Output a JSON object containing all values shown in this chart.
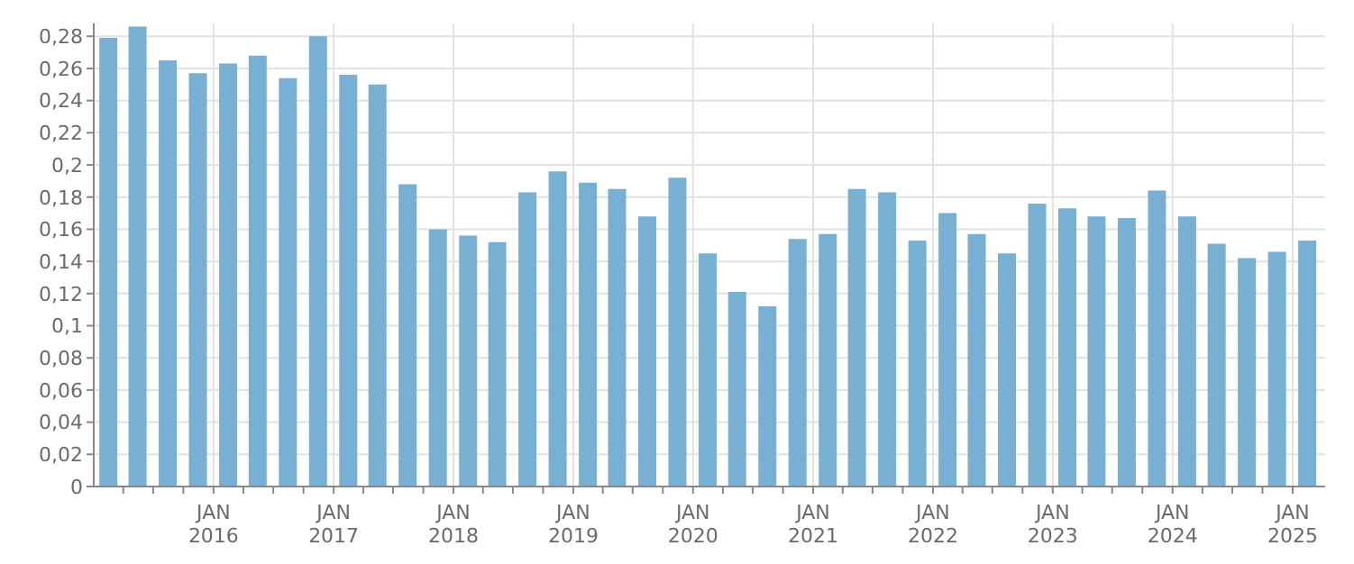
{
  "chart_data": {
    "type": "bar",
    "x": [
      "2015-02-15",
      "2015-05-15",
      "2015-08-15",
      "2015-11-15",
      "2016-02-15",
      "2016-05-15",
      "2016-08-15",
      "2016-11-15",
      "2017-02-15",
      "2017-05-15",
      "2017-08-15",
      "2017-11-15",
      "2018-02-15",
      "2018-05-15",
      "2018-08-15",
      "2018-11-15",
      "2019-02-15",
      "2019-05-15",
      "2019-08-15",
      "2019-11-15",
      "2020-02-15",
      "2020-05-15",
      "2020-08-15",
      "2020-11-15",
      "2021-02-15",
      "2021-05-15",
      "2021-08-15",
      "2021-11-15",
      "2022-02-15",
      "2022-05-15",
      "2022-08-15",
      "2022-11-15",
      "2023-02-15",
      "2023-05-15",
      "2023-08-15",
      "2023-11-15",
      "2024-02-15",
      "2024-05-15",
      "2024-08-15",
      "2024-11-15",
      "2025-02-15"
    ],
    "values": [
      0.279,
      0.286,
      0.265,
      0.257,
      0.263,
      0.268,
      0.254,
      0.28,
      0.256,
      0.25,
      0.188,
      0.16,
      0.156,
      0.152,
      0.183,
      0.196,
      0.189,
      0.185,
      0.168,
      0.192,
      0.145,
      0.121,
      0.112,
      0.154,
      0.157,
      0.185,
      0.183,
      0.153,
      0.17,
      0.157,
      0.145,
      0.176,
      0.173,
      0.168,
      0.167,
      0.184,
      0.168,
      0.151,
      0.142,
      0.146,
      0.153
    ],
    "color": "#77b0d2",
    "ylim": [
      0,
      0.288
    ],
    "yticks": [
      0,
      {
        "value": 0.02,
        "label": "0,02"
      },
      {
        "value": 0.04,
        "label": "0,04"
      },
      {
        "value": 0.06,
        "label": "0,06"
      },
      {
        "value": 0.08,
        "label": "0,08"
      },
      {
        "value": 0.1,
        "label": "0,1"
      },
      {
        "value": 0.12,
        "label": "0,12"
      },
      {
        "value": 0.14,
        "label": "0,14"
      },
      {
        "value": 0.16,
        "label": "0,16"
      },
      {
        "value": 0.18,
        "label": "0,18"
      },
      {
        "value": 0.2,
        "label": "0,2"
      },
      {
        "value": 0.22,
        "label": "0,22"
      },
      {
        "value": 0.24,
        "label": "0,24"
      },
      {
        "value": 0.26,
        "label": "0,26"
      },
      {
        "value": 0.28,
        "label": "0,28"
      }
    ],
    "xlim": [
      "2015-01-01",
      "2025-04-10"
    ],
    "xticks": [
      {
        "value": "2015-04-01",
        "label": null
      },
      {
        "value": "2015-07-01",
        "label": null
      },
      {
        "value": "2015-10-01",
        "label": null
      },
      {
        "value": "2016-01-01",
        "label": "JAN 2016"
      },
      {
        "value": "2016-04-01",
        "label": null
      },
      {
        "value": "2016-07-01",
        "label": null
      },
      {
        "value": "2016-10-01",
        "label": null
      },
      {
        "value": "2017-01-01",
        "label": "JAN 2017"
      },
      {
        "value": "2017-04-01",
        "label": null
      },
      {
        "value": "2017-07-01",
        "label": null
      },
      {
        "value": "2017-10-01",
        "label": null
      },
      {
        "value": "2018-01-01",
        "label": "JAN 2018"
      },
      {
        "value": "2018-04-01",
        "label": null
      },
      {
        "value": "2018-07-01",
        "label": null
      },
      {
        "value": "2018-10-01",
        "label": null
      },
      {
        "value": "2019-01-01",
        "label": "JAN 2019"
      },
      {
        "value": "2019-04-01",
        "label": null
      },
      {
        "value": "2019-07-01",
        "label": null
      },
      {
        "value": "2019-10-01",
        "label": null
      },
      {
        "value": "2020-01-01",
        "label": "JAN 2020"
      },
      {
        "value": "2020-04-01",
        "label": null
      },
      {
        "value": "2020-07-01",
        "label": null
      },
      {
        "value": "2020-10-01",
        "label": null
      },
      {
        "value": "2021-01-01",
        "label": "JAN 2021"
      },
      {
        "value": "2021-04-01",
        "label": null
      },
      {
        "value": "2021-07-01",
        "label": null
      },
      {
        "value": "2021-10-01",
        "label": null
      },
      {
        "value": "2022-01-01",
        "label": "JAN 2022"
      },
      {
        "value": "2022-04-01",
        "label": null
      },
      {
        "value": "2022-07-01",
        "label": null
      },
      {
        "value": "2022-10-01",
        "label": null
      },
      {
        "value": "2023-01-01",
        "label": "JAN 2023"
      },
      {
        "value": "2023-04-01",
        "label": null
      },
      {
        "value": "2023-07-01",
        "label": null
      },
      {
        "value": "2023-10-01",
        "label": null
      },
      {
        "value": "2024-01-01",
        "label": "JAN 2024"
      },
      {
        "value": "2024-04-01",
        "label": null
      },
      {
        "value": "2024-07-01",
        "label": null
      },
      {
        "value": "2024-10-01",
        "label": null
      },
      {
        "value": "2025-01-01",
        "label": "JAN 2025"
      }
    ],
    "grid": true
  }
}
